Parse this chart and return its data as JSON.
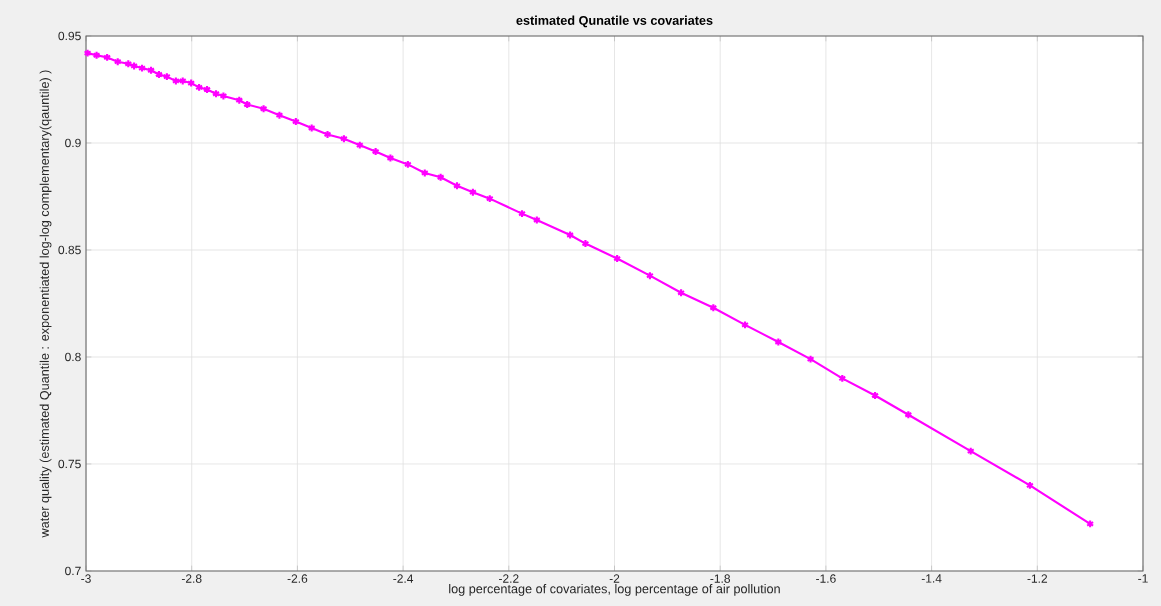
{
  "chart_data": {
    "type": "line",
    "title": "estimated Qunatile vs covariates",
    "xlabel": "log percentage of covariates, log percentage of air pollution",
    "ylabel": "water quality (estimated Quantile : exponentiated log-log complementary(qauntile) )",
    "x": [
      -2.997,
      -2.98,
      -2.96,
      -2.94,
      -2.92,
      -2.909,
      -2.894,
      -2.877,
      -2.862,
      -2.847,
      -2.83,
      -2.817,
      -2.801,
      -2.786,
      -2.771,
      -2.754,
      -2.74,
      -2.71,
      -2.695,
      -2.664,
      -2.634,
      -2.603,
      -2.573,
      -2.543,
      -2.512,
      -2.482,
      -2.452,
      -2.424,
      -2.391,
      -2.359,
      -2.329,
      -2.298,
      -2.268,
      -2.236,
      -2.175,
      -2.147,
      -2.084,
      -2.055,
      -1.995,
      -1.933,
      -1.874,
      -1.813,
      -1.753,
      -1.69,
      -1.629,
      -1.569,
      -1.507,
      -1.444,
      -1.326,
      -1.214,
      -1.1
    ],
    "series": [
      {
        "color": "#ff00ff",
        "values": [
          0.942,
          0.941,
          0.94,
          0.938,
          0.937,
          0.936,
          0.935,
          0.934,
          0.932,
          0.931,
          0.929,
          0.929,
          0.928,
          0.926,
          0.925,
          0.923,
          0.922,
          0.92,
          0.918,
          0.916,
          0.913,
          0.91,
          0.907,
          0.904,
          0.902,
          0.899,
          0.896,
          0.893,
          0.89,
          0.886,
          0.884,
          0.88,
          0.877,
          0.874,
          0.867,
          0.864,
          0.857,
          0.853,
          0.846,
          0.838,
          0.83,
          0.823,
          0.815,
          0.807,
          0.799,
          0.79,
          0.782,
          0.773,
          0.756,
          0.74,
          0.722
        ]
      }
    ],
    "xlim": [
      -3,
      -1
    ],
    "ylim": [
      0.7,
      0.95
    ],
    "xticks": [
      -3,
      -2.8,
      -2.6,
      -2.4,
      -2.2,
      -2,
      -1.8,
      -1.6,
      -1.4,
      -1.2,
      -1
    ],
    "yticks": [
      0.7,
      0.75,
      0.8,
      0.85,
      0.9,
      0.95
    ],
    "grid": true,
    "marker": "cross",
    "line_style": "solid"
  }
}
